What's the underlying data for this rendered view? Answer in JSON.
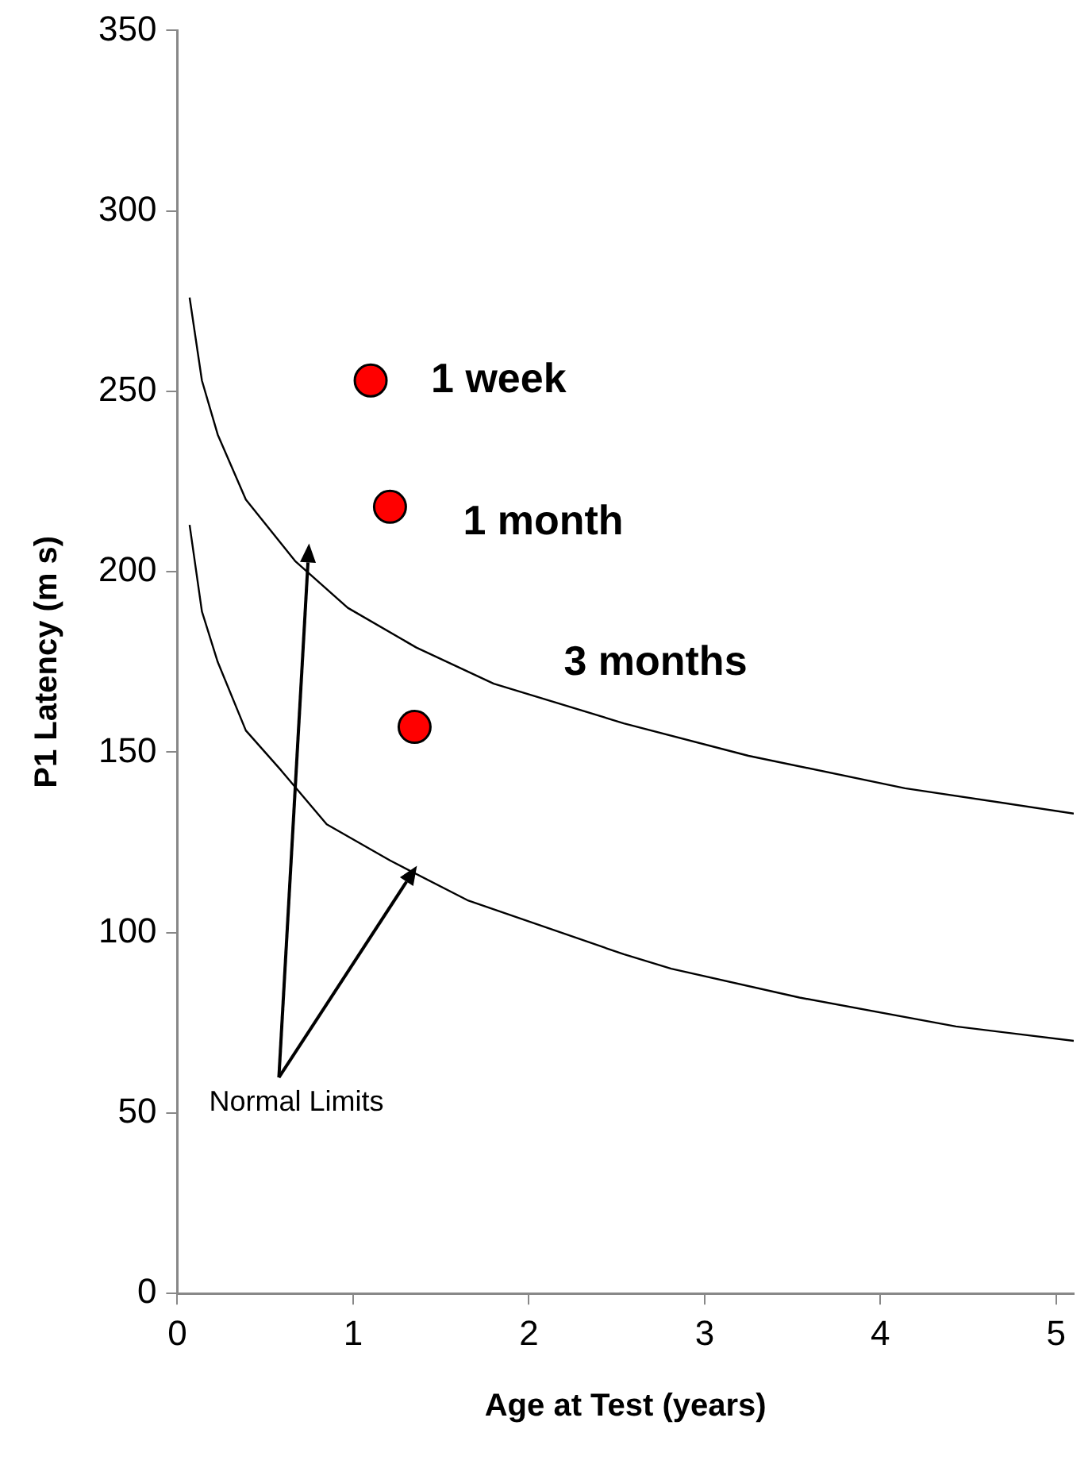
{
  "chart_data": {
    "type": "scatter",
    "xlabel": "Age at Test (years)",
    "ylabel": "P1 Latency (m s)",
    "xlim": [
      0,
      5.1
    ],
    "xticks": [
      0,
      1,
      2,
      3,
      4,
      5
    ],
    "ylim": [
      0,
      350
    ],
    "yticks": [
      0,
      50,
      100,
      150,
      200,
      250,
      300,
      350
    ],
    "grid": false,
    "legend": false,
    "series": [
      {
        "type": "line",
        "marker": "none",
        "color": "#000000",
        "x": [
          0.07,
          0.14,
          0.23,
          0.39,
          0.67,
          0.97,
          1.36,
          1.8,
          2.54,
          3.25,
          4.14,
          5.1
        ],
        "values": [
          276,
          253,
          238,
          220,
          203,
          190,
          179,
          169,
          158,
          149,
          140,
          133
        ]
      },
      {
        "type": "line",
        "marker": "none",
        "color": "#000000",
        "x": [
          0.07,
          0.14,
          0.23,
          0.39,
          0.59,
          0.85,
          1.21,
          1.65,
          2.54,
          2.81,
          3.54,
          4.43,
          5.1
        ],
        "values": [
          213,
          189,
          175,
          156,
          145,
          130,
          120,
          109,
          94,
          90,
          82,
          74,
          70
        ]
      },
      {
        "name": "1 week",
        "marker": "circle",
        "color": "#ff0000",
        "x": [
          1.1
        ],
        "values": [
          253
        ]
      },
      {
        "name": "1 month",
        "marker": "circle",
        "color": "#ff0000",
        "x": [
          1.21
        ],
        "values": [
          218
        ]
      },
      {
        "name": "3 months",
        "marker": "circle",
        "color": "#ff0000",
        "x": [
          1.35
        ],
        "values": [
          157
        ]
      }
    ],
    "annotations": [
      "Normal Limits"
    ]
  }
}
